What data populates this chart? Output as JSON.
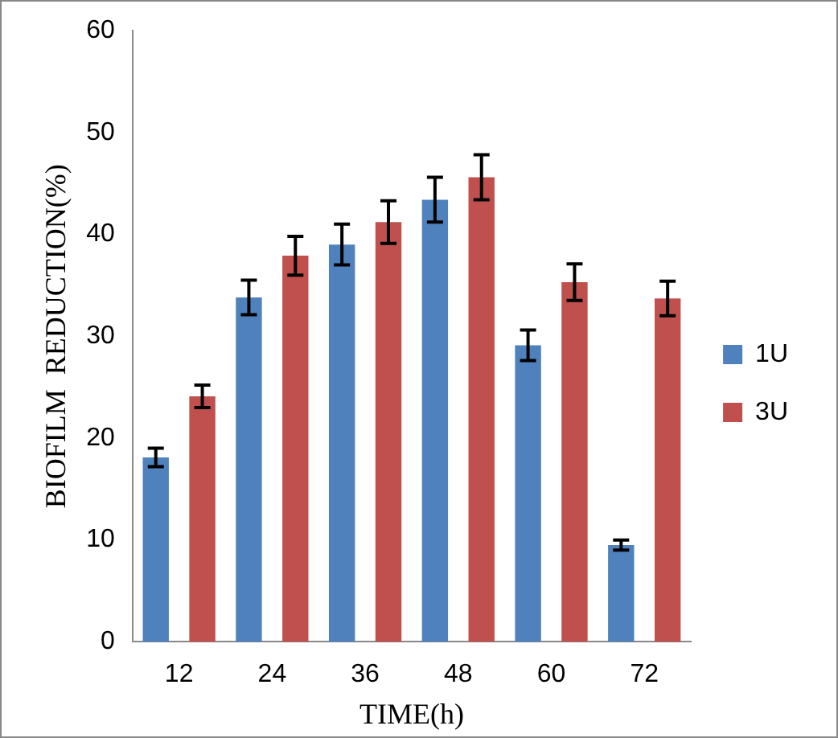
{
  "chart_data": {
    "type": "bar",
    "xlabel": "TIME(h)",
    "ylabel": "BIOFILM  REDUCTION(%)",
    "categories": [
      "12",
      "24",
      "36",
      "48",
      "60",
      "72"
    ],
    "series": [
      {
        "name": "1U",
        "color": "#4f81bd",
        "values": [
          18.1,
          33.8,
          39.0,
          43.4,
          29.1,
          9.5
        ],
        "errors": [
          0.9,
          1.7,
          2.0,
          2.2,
          1.5,
          0.5
        ]
      },
      {
        "name": "3U",
        "color": "#c0504d",
        "values": [
          24.1,
          37.9,
          41.2,
          45.6,
          35.3,
          33.7
        ],
        "errors": [
          1.1,
          1.9,
          2.1,
          2.2,
          1.8,
          1.7
        ]
      }
    ],
    "ylim": [
      0,
      60
    ],
    "yticks": [
      0,
      10,
      20,
      30,
      40,
      50,
      60
    ],
    "grid": false,
    "legend": "right"
  }
}
